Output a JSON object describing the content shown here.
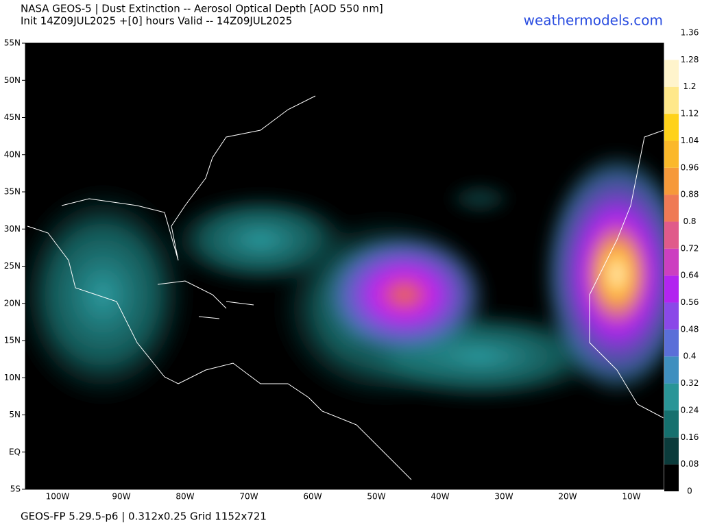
{
  "header": {
    "title": "NASA GEOS-5 | Dust Extinction -- Aerosol Optical Depth [AOD 550 nm]",
    "subtitle": "Init 14Z09JUL2025 +[0] hours Valid -- 14Z09JUL2025",
    "brand": "weathermodels.com"
  },
  "map": {
    "lat_labels": [
      "55N",
      "50N",
      "45N",
      "40N",
      "35N",
      "30N",
      "25N",
      "20N",
      "15N",
      "10N",
      "5N",
      "EQ",
      "5S"
    ],
    "lon_labels": [
      "100W",
      "90W",
      "80W",
      "70W",
      "60W",
      "50W",
      "40W",
      "30W",
      "20W",
      "10W"
    ]
  },
  "colorbar": {
    "lim": [
      0,
      1.36
    ],
    "ticks": [
      0,
      0.08,
      0.16,
      0.24,
      0.32,
      0.4,
      0.48,
      0.56,
      0.64,
      0.72,
      0.8,
      0.88,
      0.96,
      1.04,
      1.12,
      1.2,
      1.28,
      1.36
    ],
    "colors": [
      "#000000",
      "#0b3b3b",
      "#15706e",
      "#2a9597",
      "#3f8fbf",
      "#5a6fd8",
      "#8a48e8",
      "#b224f0",
      "#cc3fc0",
      "#e05a8a",
      "#ef7a55",
      "#f6993a",
      "#fbb82a",
      "#ffd21a",
      "#ffe88a",
      "#fff4cc",
      "#ffffff"
    ]
  },
  "footer": "GEOS-FP 5.29.5-p6 | 0.312x0.25 Grid 1152x721"
}
